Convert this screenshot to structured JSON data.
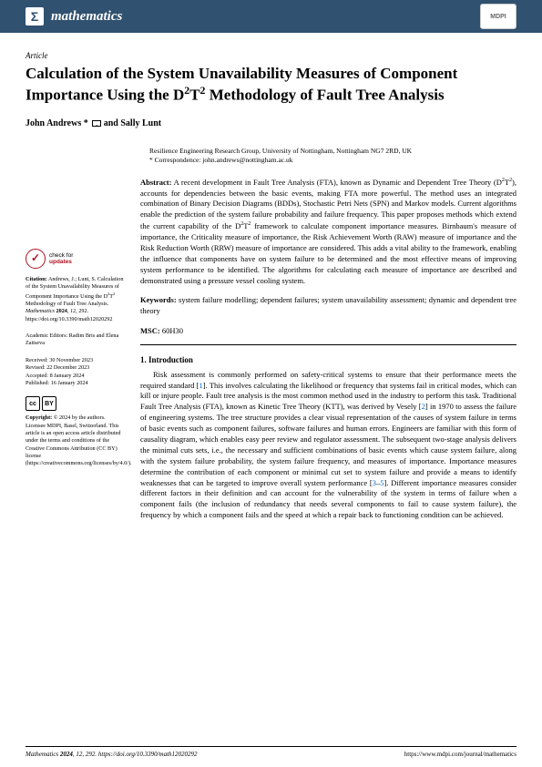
{
  "banner": {
    "icon_letter": "Σ",
    "journal": "mathematics",
    "publisher_logo": "MDPI"
  },
  "header": {
    "article_type": "Article",
    "title_html": "Calculation of the System Unavailability Measures of Component Importance Using the D<sup>2</sup>T<sup>2</sup> Methodology of Fault Tree Analysis",
    "authors_html": "John Andrews * <span class=\"envelope-icon\" data-name=\"envelope-icon\" data-interactable=\"false\"></span> and Sally Lunt"
  },
  "affiliation": {
    "line1": "Resilience Engineering Research Group, University of Nottingham, Nottingham NG7 2RD, UK",
    "line2": "* Correspondence: john.andrews@nottingham.ac.uk"
  },
  "abstract": {
    "label": "Abstract:",
    "text_html": "A recent development in Fault Tree Analysis (FTA), known as Dynamic and Dependent Tree Theory (D<sup>2</sup>T<sup>2</sup>), accounts for dependencies between the basic events, making FTA more powerful. The method uses an integrated combination of Binary Decision Diagrams (BDDs), Stochastic Petri Nets (SPN) and Markov models. Current algorithms enable the prediction of the system failure probability and failure frequency. This paper proposes methods which extend the current capability of the D<sup>2</sup>T<sup>2</sup> framework to calculate component importance measures. Birnbaum's measure of importance, the Criticality measure of importance, the Risk Achievement Worth (RAW) measure of importance and the Risk Reduction Worth (RRW) measure of importance are considered. This adds a vital ability to the framework, enabling the influence that components have on system failure to be determined and the most effective means of improving system performance to be identified. The algorithms for calculating each measure of importance are described and demonstrated using a pressure vessel cooling system."
  },
  "keywords": {
    "label": "Keywords:",
    "text": "system failure modelling; dependent failures; system unavailability assessment; dynamic and dependent tree theory"
  },
  "msc": {
    "label": "MSC:",
    "text": "60H30"
  },
  "sidebar": {
    "check_updates": {
      "line1": "check for",
      "line2": "updates"
    },
    "citation": {
      "label": "Citation:",
      "text_html": "Andrews, J.; Lunt, S. Calculation of the System Unavailability Measures of Component Importance Using the D<sup>2</sup>T<sup>2</sup> Methodology of Fault Tree Analysis. <i>Mathematics</i> <b>2024</b>, <i>12</i>, 292. https://doi.org/10.3390/math12020292"
    },
    "editors": {
      "label": "Academic Editors:",
      "text": "Radim Bris and Elena Zaitseva"
    },
    "dates": {
      "received": "Received: 30 November 2023",
      "revised": "Revised: 22 December 2023",
      "accepted": "Accepted: 8 January 2024",
      "published": "Published: 16 January 2024"
    },
    "copyright": {
      "label": "Copyright:",
      "text": "© 2024 by the authors. Licensee MDPI, Basel, Switzerland. This article is an open access article distributed under the terms and conditions of the Creative Commons Attribution (CC BY) license (https://creativecommons.org/licenses/by/4.0/)."
    }
  },
  "introduction": {
    "heading": "1. Introduction",
    "body_html": "Risk assessment is commonly performed on safety-critical systems to ensure that their performance meets the required standard [<span class=\"ref\">1</span>]. This involves calculating the likelihood or frequency that systems fail in critical modes, which can kill or injure people. Fault tree analysis is the most common method used in the industry to perform this task. Traditional Fault Tree Analysis (FTA), known as Kinetic Tree Theory (KTT), was derived by Vesely [<span class=\"ref\">2</span>] in 1970 to assess the failure of engineering systems. The tree structure provides a clear visual representation of the causes of system failure in terms of basic events such as component failures, software failures and human errors. Engineers are familiar with this form of causality diagram, which enables easy peer review and regulator assessment. The subsequent two-stage analysis delivers the minimal cuts sets, i.e., the necessary and sufficient combinations of basic events which cause system failure, along with the system failure probability, the system failure frequency, and measures of importance. Importance measures determine the contribution of each component or minimal cut set to system failure and provide a means to identify weaknesses that can be targeted to improve overall system performance [<span class=\"ref\">3</span>–<span class=\"ref\">5</span>]. Different importance measures consider different factors in their definition and can account for the vulnerability of the system in terms of failure when a component fails (the inclusion of redundancy that needs several components to fail to cause system failure), the frequency by which a component fails and the speed at which a repair back to functioning condition can be achieved."
  },
  "footer": {
    "left_html": "<i>Mathematics</i> <b>2024</b>, <i>12</i>, 292. https://doi.org/10.3390/math12020292",
    "right": "https://www.mdpi.com/journal/mathematics"
  },
  "style": {
    "banner_bg": "#30516f",
    "ref_color": "#0066cc",
    "check_color": "#b01020"
  }
}
